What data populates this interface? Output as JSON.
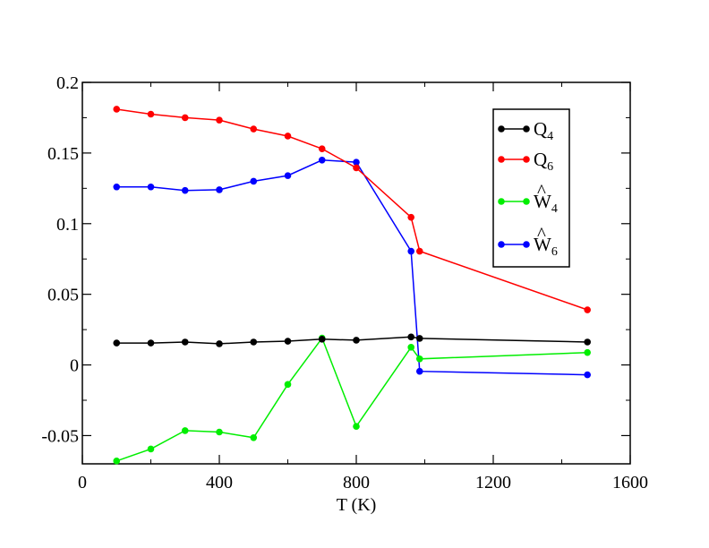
{
  "chart_data": {
    "type": "line",
    "xlabel": "T (K)",
    "ylabel": "",
    "xlim": [
      0,
      1600
    ],
    "ylim": [
      -0.07,
      0.2
    ],
    "xticks": [
      0,
      400,
      800,
      1200,
      1600
    ],
    "xtick_labels": [
      "0",
      "400",
      "800",
      "1200",
      "1600"
    ],
    "yticks": [
      -0.05,
      0,
      0.05,
      0.1,
      0.15,
      0.2
    ],
    "ytick_labels": [
      "-0.05",
      "0",
      "0.05",
      "0.1",
      "0.15",
      "0.2"
    ],
    "grid": false,
    "legend_position": "top-right",
    "series": [
      {
        "name": "Q4",
        "label_main": "Q",
        "label_sub": "4",
        "label_hat": "",
        "color": "#000000",
        "x": [
          100,
          200,
          300,
          400,
          500,
          600,
          700,
          800,
          960,
          985,
          1475
        ],
        "y": [
          0.0155,
          0.0155,
          0.0162,
          0.015,
          0.0162,
          0.0168,
          0.0182,
          0.0175,
          0.0198,
          0.0188,
          0.0162
        ]
      },
      {
        "name": "Q6",
        "label_main": "Q",
        "label_sub": "6",
        "label_hat": "",
        "color": "#ff0000",
        "x": [
          100,
          200,
          300,
          400,
          500,
          600,
          700,
          800,
          960,
          985,
          1475
        ],
        "y": [
          0.181,
          0.1775,
          0.175,
          0.1733,
          0.167,
          0.162,
          0.153,
          0.1395,
          0.1045,
          0.0805,
          0.039
        ]
      },
      {
        "name": "W4",
        "label_main": "W",
        "label_sub": "4",
        "label_hat": "^",
        "color": "#00ee00",
        "x": [
          100,
          200,
          300,
          400,
          500,
          600,
          700,
          800,
          960,
          985,
          1475
        ],
        "y": [
          -0.068,
          -0.0595,
          -0.0465,
          -0.0475,
          -0.0515,
          -0.0138,
          0.019,
          -0.0435,
          0.0125,
          0.0043,
          0.0088
        ]
      },
      {
        "name": "W6",
        "label_main": "W",
        "label_sub": "6",
        "label_hat": "^",
        "color": "#0000ff",
        "x": [
          100,
          200,
          300,
          400,
          500,
          600,
          700,
          800,
          960,
          985,
          1475
        ],
        "y": [
          0.126,
          0.126,
          0.1235,
          0.124,
          0.13,
          0.134,
          0.145,
          0.1435,
          0.0805,
          -0.0045,
          -0.007
        ]
      }
    ]
  }
}
